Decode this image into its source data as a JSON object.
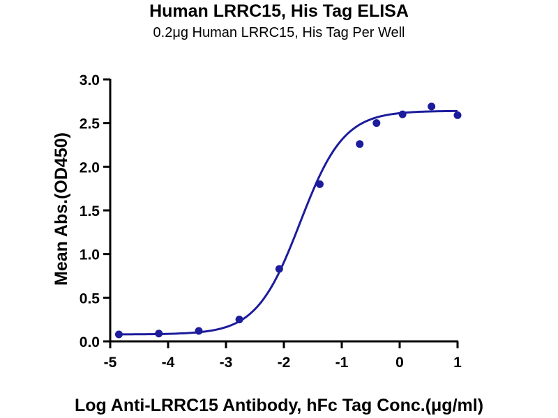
{
  "chart_data": {
    "type": "scatter",
    "title": "Human LRRC15, His Tag ELISA",
    "subtitle": "0.2μg Human LRRC15, His Tag Per Well",
    "xlabel": "Log Anti-LRRC15 Antibody, hFc Tag Conc.(μg/ml)",
    "ylabel": "Mean Abs.(OD450)",
    "xlim": [
      -5,
      1
    ],
    "ylim": [
      0,
      3.0
    ],
    "xticks": [
      -5,
      -4,
      -3,
      -2,
      -1,
      0,
      1
    ],
    "xtick_labels": [
      "-5",
      "-4",
      "-3",
      "-2",
      "-1",
      "0",
      "1"
    ],
    "yticks": [
      0,
      0.5,
      1.0,
      1.5,
      2.0,
      2.5,
      3.0
    ],
    "ytick_labels": [
      "0.0",
      "0.5",
      "1.0",
      "1.5",
      "2.0",
      "2.5",
      "3.0"
    ],
    "grid": false,
    "legend": "none",
    "series": [
      {
        "points": [
          {
            "x": -4.85,
            "y": 0.08
          },
          {
            "x": -4.16,
            "y": 0.09
          },
          {
            "x": -3.47,
            "y": 0.12
          },
          {
            "x": -2.77,
            "y": 0.25
          },
          {
            "x": -2.08,
            "y": 0.83
          },
          {
            "x": -1.38,
            "y": 1.8
          },
          {
            "x": -0.69,
            "y": 2.26
          },
          {
            "x": -0.4,
            "y": 2.5
          },
          {
            "x": 0.05,
            "y": 2.6
          },
          {
            "x": 0.55,
            "y": 2.69
          },
          {
            "x": 1.0,
            "y": 2.59
          }
        ],
        "fit": {
          "bottom": 0.08,
          "top": 2.64,
          "log_ec50": -1.72,
          "hill_slope": 1.15
        }
      }
    ],
    "colors": {
      "series": "#1c1c9c",
      "axis": "#000000"
    }
  }
}
